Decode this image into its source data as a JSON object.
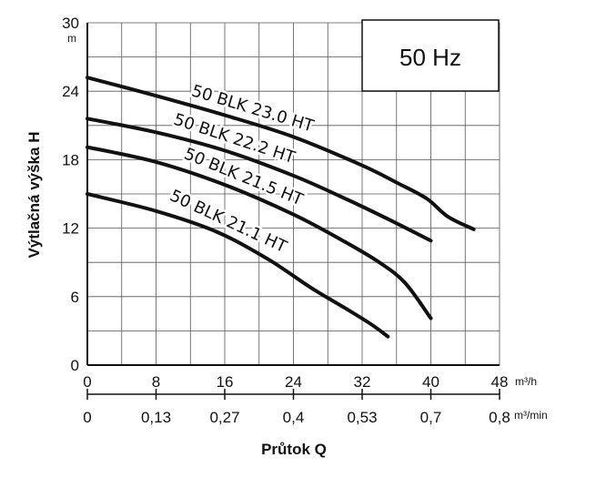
{
  "chart_data": {
    "type": "line",
    "xlabel": "Průtok Q",
    "ylabel": "Výtlačná výška H",
    "y_unit": "m",
    "x_unit_primary": "m³/h",
    "x_unit_secondary": "m³/min",
    "xlim": [
      0,
      48
    ],
    "ylim": [
      0,
      30
    ],
    "x_ticks": [
      "0",
      "8",
      "16",
      "24",
      "32",
      "40",
      "48"
    ],
    "y_ticks": [
      "0",
      "6",
      "12",
      "18",
      "24",
      "30"
    ],
    "x2_ticks": [
      "0",
      "0,13",
      "0,27",
      "0,4",
      "0,53",
      "0,7",
      "0,8"
    ],
    "grid": true,
    "annotation": "50 Hz",
    "series": [
      {
        "name": "50 BLK 23.0 HT",
        "x": [
          0,
          8,
          16,
          24,
          32,
          36,
          39.5,
          42,
          45
        ],
        "y": [
          25.2,
          23.6,
          21.9,
          20.0,
          17.5,
          16.0,
          14.6,
          13.0,
          11.9
        ]
      },
      {
        "name": "50 BLK 22.2 HT",
        "x": [
          0,
          8,
          16,
          24,
          30,
          35,
          40
        ],
        "y": [
          21.6,
          20.4,
          18.8,
          16.6,
          14.6,
          12.8,
          10.9
        ]
      },
      {
        "name": "50 BLK 21.5 HT",
        "x": [
          0,
          8,
          16,
          24,
          30,
          34,
          37,
          40
        ],
        "y": [
          19.1,
          17.8,
          15.8,
          13.2,
          10.8,
          9.0,
          7.2,
          4.1
        ]
      },
      {
        "name": "50 BLK 21.1 HT",
        "x": [
          0,
          8,
          15,
          21,
          26,
          30,
          33,
          35
        ],
        "y": [
          15.0,
          13.5,
          11.7,
          9.3,
          6.8,
          5.0,
          3.6,
          2.5
        ]
      }
    ]
  }
}
